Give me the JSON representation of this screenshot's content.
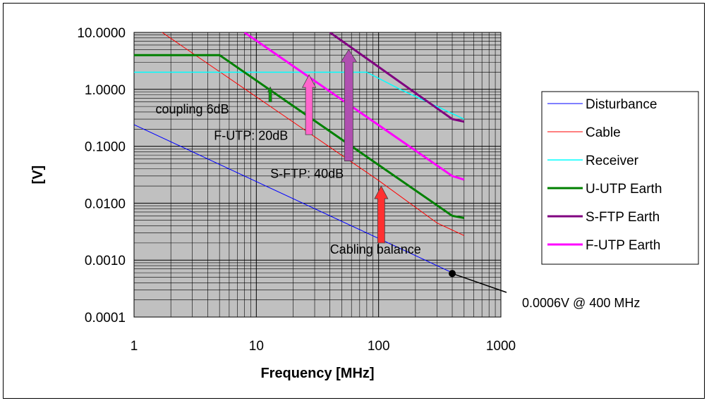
{
  "chart_data": {
    "type": "line",
    "xlabel": "Frequency [MHz]",
    "ylabel": "[V]",
    "x_scale": "log",
    "y_scale": "log",
    "xlim": [
      1,
      1000
    ],
    "ylim": [
      0.0001,
      10
    ],
    "x_ticks": [
      "1",
      "10",
      "100",
      "1000"
    ],
    "y_ticks": [
      "10.0000",
      "1.0000",
      "0.1000",
      "0.0100",
      "0.0010",
      "0.0001"
    ],
    "grid": true,
    "legend_position": "right",
    "plot_background": "#c0c0c0",
    "series": [
      {
        "name": "Disturbance",
        "color": "#0000ff",
        "width": 1,
        "points": [
          [
            1,
            0.24
          ],
          [
            400,
            0.0006
          ]
        ]
      },
      {
        "name": "Cable",
        "color": "#ff0000",
        "width": 1,
        "points": [
          [
            1.5,
            12
          ],
          [
            100,
            0.025
          ],
          [
            300,
            0.0045
          ],
          [
            500,
            0.0027
          ]
        ]
      },
      {
        "name": "Receiver",
        "color": "#00ffff",
        "width": 1.5,
        "points": [
          [
            1,
            2
          ],
          [
            80,
            2
          ],
          [
            150,
            1
          ],
          [
            500,
            0.3
          ]
        ]
      },
      {
        "name": "U-UTP Earth",
        "color": "#008000",
        "width": 3,
        "points": [
          [
            1,
            4
          ],
          [
            5,
            4
          ],
          [
            400,
            0.006
          ],
          [
            500,
            0.0055
          ]
        ]
      },
      {
        "name": "S-FTP Earth",
        "color": "#800080",
        "width": 3,
        "points": [
          [
            40,
            10
          ],
          [
            400,
            0.3
          ],
          [
            500,
            0.27
          ]
        ]
      },
      {
        "name": "F-UTP Earth",
        "color": "#ff00ff",
        "width": 3,
        "points": [
          [
            8,
            10
          ],
          [
            400,
            0.03
          ],
          [
            500,
            0.026
          ]
        ]
      }
    ],
    "arrows": [
      {
        "label": "coupling 6dB",
        "x": 13,
        "y_from": 0.6,
        "y_to": 1.1,
        "color": "#00a000",
        "width": 4
      },
      {
        "label": "F-UTP: 20dB",
        "x": 27,
        "y_from": 0.16,
        "y_to": 1.8,
        "color": "#ff66cc",
        "width": 10
      },
      {
        "label": "S-FTP: 40dB",
        "x": 57,
        "y_from": 0.055,
        "y_to": 5,
        "color": "#b050b0",
        "width": 12
      },
      {
        "label": "Cabling balance",
        "x": 105,
        "y_from": 0.002,
        "y_to": 0.02,
        "color": "#ff3030",
        "width": 10
      }
    ],
    "annotations": [
      {
        "label": "coupling 6dB",
        "x": 1.5,
        "y": 0.38
      },
      {
        "label": "F-UTP: 20dB",
        "x": 4.5,
        "y": 0.13
      },
      {
        "label": "S-FTP: 40dB",
        "x": 13,
        "y": 0.028
      },
      {
        "label": "Cabling balance",
        "x": 40,
        "y": 0.0013
      }
    ],
    "callout": {
      "label": "0.0006V @ 400 MHz",
      "x": 400,
      "y": 0.00055
    }
  }
}
